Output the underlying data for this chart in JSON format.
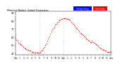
{
  "title": "Milwaukee Weather Outdoor Temperature vs Heat Index per Minute (24 Hours)",
  "bg_color": "#ffffff",
  "plot_bg_color": "#ffffff",
  "dot_color": "#ff0000",
  "dot_size": 0.8,
  "ylim": [
    38,
    92
  ],
  "xlim": [
    0,
    1440
  ],
  "yticks": [
    40,
    50,
    60,
    70,
    80,
    90
  ],
  "xticks": [
    0,
    60,
    120,
    180,
    240,
    300,
    360,
    420,
    480,
    540,
    600,
    660,
    720,
    780,
    840,
    900,
    960,
    1020,
    1080,
    1140,
    1200,
    1260,
    1320,
    1380,
    1440
  ],
  "xtick_labels": [
    "12a",
    "1",
    "2",
    "3",
    "4",
    "5",
    "6",
    "7",
    "8",
    "9",
    "10",
    "11",
    "12p",
    "1",
    "2",
    "3",
    "4",
    "5",
    "6",
    "7",
    "8",
    "9",
    "10",
    "11",
    "12a"
  ],
  "vlines": [
    360,
    720
  ],
  "temp_data": [
    [
      0,
      58
    ],
    [
      15,
      56
    ],
    [
      30,
      55
    ],
    [
      45,
      53
    ],
    [
      60,
      52
    ],
    [
      75,
      51
    ],
    [
      90,
      50
    ],
    [
      105,
      49
    ],
    [
      120,
      48
    ],
    [
      135,
      47
    ],
    [
      150,
      46
    ],
    [
      165,
      45
    ],
    [
      180,
      44
    ],
    [
      195,
      44
    ],
    [
      210,
      43
    ],
    [
      225,
      43
    ],
    [
      240,
      42
    ],
    [
      255,
      42
    ],
    [
      270,
      41
    ],
    [
      285,
      41
    ],
    [
      300,
      41
    ],
    [
      315,
      41
    ],
    [
      330,
      41
    ],
    [
      345,
      41
    ],
    [
      360,
      41
    ],
    [
      375,
      42
    ],
    [
      390,
      43
    ],
    [
      405,
      44
    ],
    [
      420,
      46
    ],
    [
      435,
      48
    ],
    [
      450,
      50
    ],
    [
      465,
      52
    ],
    [
      480,
      55
    ],
    [
      495,
      58
    ],
    [
      510,
      61
    ],
    [
      525,
      64
    ],
    [
      540,
      67
    ],
    [
      555,
      69
    ],
    [
      570,
      71
    ],
    [
      585,
      73
    ],
    [
      600,
      75
    ],
    [
      615,
      76
    ],
    [
      630,
      78
    ],
    [
      645,
      79
    ],
    [
      660,
      80
    ],
    [
      675,
      81
    ],
    [
      690,
      82
    ],
    [
      705,
      82
    ],
    [
      720,
      83
    ],
    [
      735,
      83
    ],
    [
      750,
      83
    ],
    [
      765,
      83
    ],
    [
      780,
      82
    ],
    [
      795,
      82
    ],
    [
      810,
      81
    ],
    [
      825,
      80
    ],
    [
      840,
      79
    ],
    [
      855,
      77
    ],
    [
      870,
      76
    ],
    [
      885,
      74
    ],
    [
      900,
      73
    ],
    [
      915,
      71
    ],
    [
      930,
      70
    ],
    [
      945,
      68
    ],
    [
      960,
      67
    ],
    [
      975,
      65
    ],
    [
      990,
      64
    ],
    [
      1005,
      63
    ],
    [
      1020,
      62
    ],
    [
      1035,
      61
    ],
    [
      1050,
      60
    ],
    [
      1065,
      58
    ],
    [
      1080,
      57
    ],
    [
      1095,
      56
    ],
    [
      1110,
      55
    ],
    [
      1125,
      54
    ],
    [
      1140,
      54
    ],
    [
      1155,
      55
    ],
    [
      1170,
      54
    ],
    [
      1185,
      53
    ],
    [
      1200,
      52
    ],
    [
      1215,
      51
    ],
    [
      1230,
      50
    ],
    [
      1245,
      49
    ],
    [
      1260,
      48
    ],
    [
      1275,
      47
    ],
    [
      1290,
      46
    ],
    [
      1310,
      45
    ],
    [
      1320,
      44
    ],
    [
      1335,
      44
    ],
    [
      1350,
      43
    ],
    [
      1365,
      43
    ],
    [
      1380,
      42
    ],
    [
      1395,
      42
    ],
    [
      1410,
      42
    ],
    [
      1425,
      42
    ],
    [
      1440,
      42
    ]
  ]
}
